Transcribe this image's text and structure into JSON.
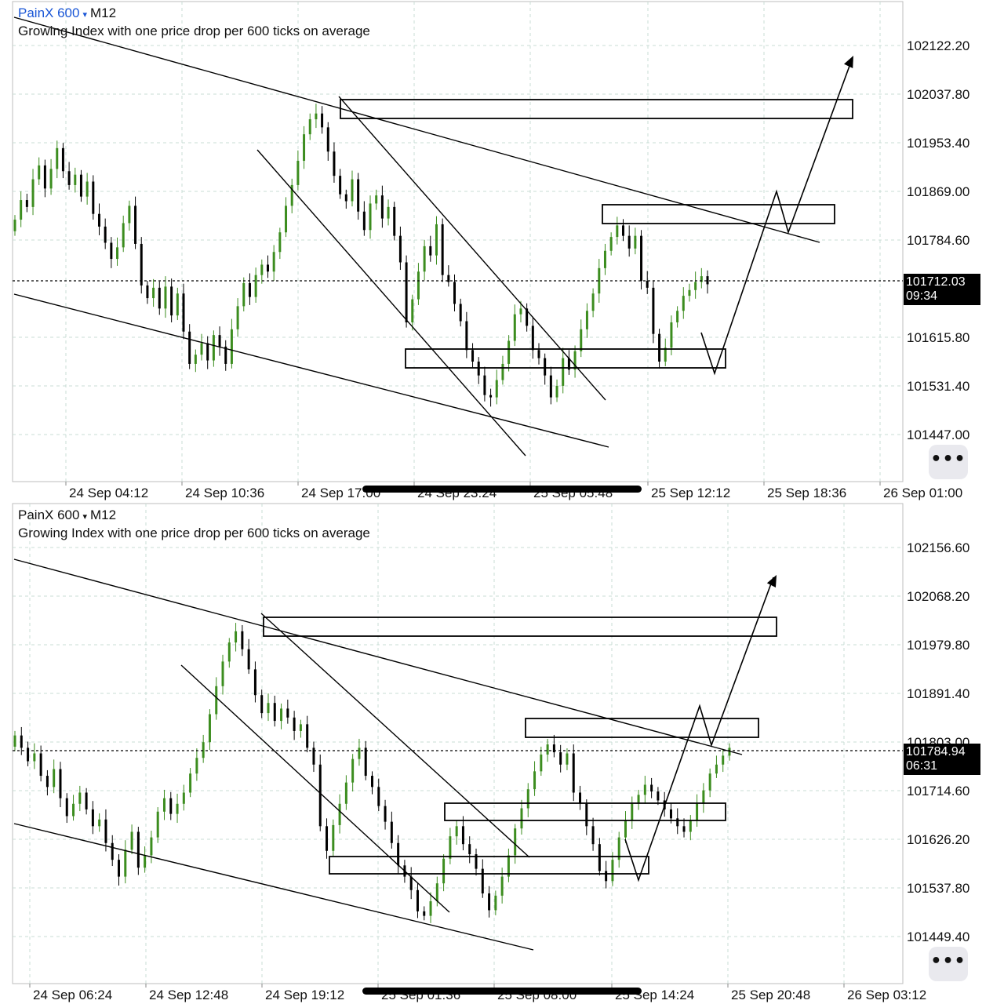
{
  "panels": [
    {
      "symbol": "PainX 600",
      "caret": "▾",
      "timeframe": "M12",
      "description": "Growing Index with one price drop per 600 ticks on average",
      "current_price": "101712.03",
      "countdown": "09:34",
      "more_label": "•••"
    },
    {
      "symbol": "PainX 600",
      "caret": "▾",
      "timeframe": "M12",
      "description": "Growing Index with one price drop per 600 ticks on average",
      "current_price": "101784.94",
      "countdown": "06:31",
      "more_label": "•••"
    }
  ],
  "colors": {
    "bull": "#3c8d1f",
    "bear": "#000000",
    "grid": "#c9dcd6",
    "drawing": "#000000"
  },
  "chart_data": [
    {
      "type": "candlestick",
      "title": "PainX 600 M12",
      "y_ticks": [
        "102122.20",
        "102037.80",
        "101953.40",
        "101869.00",
        "101784.60",
        "101712.03",
        "101615.80",
        "101531.40",
        "101447.00"
      ],
      "x_ticks": [
        "24 Sep 04:12",
        "24 Sep 10:36",
        "24 Sep 17:00",
        "24 Sep 23:24",
        "25 Sep 05:48",
        "25 Sep 12:12",
        "25 Sep 18:36",
        "26 Sep 01:00"
      ],
      "ylim": [
        101364.0,
        102196.0
      ],
      "current_price": 101712.03,
      "grid": true,
      "candle_closes": [
        101818,
        101852,
        101840,
        101888,
        101912,
        101872,
        101906,
        101942,
        101902,
        101878,
        101896,
        101858,
        101884,
        101828,
        101806,
        101778,
        101750,
        101770,
        101812,
        101842,
        101776,
        101704,
        101682,
        101700,
        101664,
        101702,
        101652,
        101690,
        101624,
        101568,
        101584,
        101604,
        101574,
        101618,
        101598,
        101568,
        101628,
        101668,
        101708,
        101684,
        101722,
        101740,
        101728,
        101762,
        101796,
        101842,
        101878,
        101920,
        101966,
        101992,
        102002,
        101978,
        101936,
        101894,
        101862,
        101850,
        101888,
        101832,
        101800,
        101846,
        101860,
        101820,
        101840,
        101790,
        101744,
        101640,
        101680,
        101728,
        101772,
        101756,
        101810,
        101722,
        101710,
        101672,
        101642,
        101592,
        101572,
        101548,
        101514,
        101510,
        101540,
        101568,
        101608,
        101654,
        101664,
        101634,
        101592,
        101578,
        101548,
        101510,
        101530,
        101578,
        101558,
        101590,
        101628,
        101660,
        101690,
        101734,
        101764,
        101788,
        101808,
        101790,
        101768,
        101790,
        101712,
        101700,
        101620,
        101572,
        101596,
        101640,
        101660,
        101686,
        101696,
        101710,
        101720,
        101706
      ]
    },
    {
      "type": "candlestick",
      "title": "PainX 600 M12",
      "y_ticks": [
        "102156.60",
        "102068.20",
        "101979.80",
        "101891.40",
        "101803.00",
        "101784.94",
        "101714.60",
        "101626.20",
        "101537.80",
        "101449.40"
      ],
      "x_ticks": [
        "24 Sep 06:24",
        "24 Sep 12:48",
        "24 Sep 19:12",
        "25 Sep 01:36",
        "25 Sep 08:00",
        "25 Sep 14:24",
        "25 Sep 20:48",
        "26 Sep 03:12"
      ],
      "ylim": [
        101369.0,
        102226.0
      ],
      "current_price": 101784.94,
      "grid": true,
      "candle_closes": [
        101812,
        101790,
        101766,
        101780,
        101740,
        101720,
        101752,
        101700,
        101668,
        101690,
        101710,
        101680,
        101650,
        101662,
        101620,
        101590,
        101560,
        101608,
        101640,
        101576,
        101598,
        101630,
        101676,
        101700,
        101672,
        101690,
        101710,
        101744,
        101772,
        101800,
        101850,
        101900,
        101944,
        101978,
        101998,
        101966,
        101930,
        101884,
        101852,
        101870,
        101838,
        101860,
        101844,
        101820,
        101832,
        101790,
        101760,
        101650,
        101606,
        101652,
        101690,
        101728,
        101770,
        101790,
        101740,
        101720,
        101686,
        101658,
        101620,
        101580,
        101560,
        101536,
        101498,
        101490,
        101516,
        101548,
        101592,
        101632,
        101650,
        101618,
        101600,
        101574,
        101530,
        101500,
        101526,
        101560,
        101598,
        101646,
        101682,
        101716,
        101748,
        101778,
        101796,
        101782,
        101760,
        101780,
        101710,
        101690,
        101650,
        101618,
        101570,
        101552,
        101590,
        101630,
        101660,
        101690,
        101706,
        101724,
        101712,
        101696,
        101680,
        101664,
        101650,
        101640,
        101660,
        101690,
        101714,
        101744,
        101760,
        101776,
        101790
      ]
    }
  ]
}
